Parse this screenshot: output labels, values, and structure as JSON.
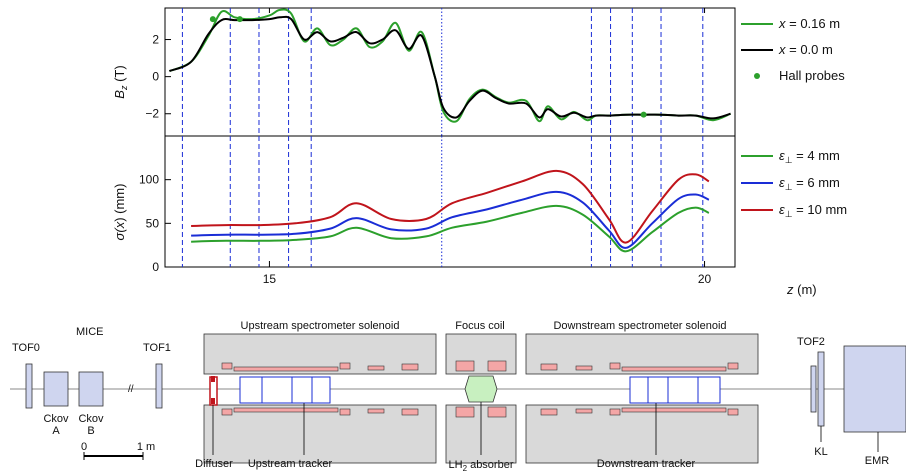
{
  "colors": {
    "green": "#2ca02c",
    "black": "#000000",
    "blue": "#1a2dd6",
    "red": "#c0141b",
    "guide": "#1a2dd6",
    "hall": "#2ca02c"
  },
  "chart_data": [
    {
      "type": "line",
      "ylabel": "B_z (T)",
      "ylabel_main": "B",
      "ylabel_sub": "z",
      "ylabel_unit": " (T)",
      "xlim": [
        13.8,
        20.35
      ],
      "ylim": [
        -3.2,
        3.7
      ],
      "yticks": [
        -2,
        0,
        2
      ],
      "series": [
        {
          "name": "x = 0.16 m",
          "legend_var": "x",
          "legend_rest": " = 0.16 m",
          "color": "#2ca02c",
          "x": [
            13.85,
            14.1,
            14.3,
            14.45,
            14.6,
            14.8,
            15.0,
            15.12,
            15.25,
            15.4,
            15.55,
            15.7,
            15.85,
            16.0,
            16.15,
            16.3,
            16.45,
            16.6,
            16.75,
            16.9,
            17.0,
            17.15,
            17.3,
            17.45,
            17.6,
            17.75,
            17.95,
            18.1,
            18.2,
            18.35,
            18.5,
            18.65,
            18.75,
            18.9,
            19.1,
            19.3,
            19.5,
            19.7,
            19.9,
            20.1,
            20.3
          ],
          "y": [
            0.3,
            0.8,
            2.2,
            3.5,
            3.2,
            3.1,
            3.3,
            3.6,
            3.4,
            1.9,
            2.6,
            1.7,
            2.0,
            2.6,
            1.6,
            1.9,
            2.9,
            1.4,
            2.4,
            0.0,
            -1.9,
            -2.4,
            -1.2,
            -0.7,
            -1.1,
            -1.4,
            -1.3,
            -2.4,
            -1.6,
            -2.3,
            -1.9,
            -2.35,
            -2.1,
            -2.1,
            -2.05,
            -2.05,
            -2.05,
            -2.1,
            -2.1,
            -2.35,
            -2.0
          ]
        },
        {
          "name": "x = 0.0 m",
          "legend_var": "x",
          "legend_rest": " = 0.0 m",
          "color": "#000000",
          "x": [
            13.85,
            14.1,
            14.3,
            14.45,
            14.6,
            14.8,
            15.0,
            15.12,
            15.25,
            15.4,
            15.55,
            15.7,
            15.85,
            16.0,
            16.15,
            16.3,
            16.45,
            16.6,
            16.75,
            16.9,
            17.0,
            17.15,
            17.3,
            17.45,
            17.6,
            17.75,
            17.95,
            18.1,
            18.2,
            18.35,
            18.5,
            18.65,
            18.75,
            18.9,
            19.1,
            19.3,
            19.5,
            19.7,
            19.9,
            20.1,
            20.3
          ],
          "y": [
            0.3,
            0.8,
            2.3,
            3.05,
            3.05,
            3.05,
            3.1,
            3.2,
            3.1,
            2.0,
            2.4,
            1.9,
            2.1,
            2.4,
            1.8,
            2.0,
            2.5,
            1.5,
            2.2,
            0.0,
            -1.7,
            -2.2,
            -1.3,
            -0.75,
            -1.15,
            -1.45,
            -1.45,
            -2.2,
            -1.75,
            -2.15,
            -1.95,
            -2.2,
            -2.1,
            -2.1,
            -2.05,
            -2.05,
            -2.05,
            -2.1,
            -2.1,
            -2.25,
            -2.0
          ]
        }
      ],
      "hall_probes": {
        "name": "Hall probes",
        "x": [
          14.35,
          14.66,
          19.3
        ],
        "y": [
          3.1,
          3.1,
          -2.05
        ]
      }
    },
    {
      "type": "line",
      "ylabel": "σ(x) (mm)",
      "ylabel_main": "σ(",
      "ylabel_var": "x",
      "ylabel_rest": ") (mm)",
      "xlabel": "z (m)",
      "xlabel_var": "z",
      "xlabel_rest": " (m)",
      "xlim": [
        13.8,
        20.35
      ],
      "ylim": [
        0,
        150
      ],
      "yticks": [
        0,
        50,
        100
      ],
      "xticks": [
        15,
        20
      ],
      "series": [
        {
          "name": "ε⊥ = 4 mm",
          "legend_var": "ε",
          "legend_sub": "⊥",
          "legend_rest": " = 4 mm",
          "color": "#2ca02c",
          "x": [
            14.1,
            14.5,
            14.9,
            15.3,
            15.7,
            16.0,
            16.4,
            16.8,
            17.1,
            17.5,
            17.9,
            18.3,
            18.6,
            18.9,
            19.1,
            19.4,
            19.7,
            19.9,
            20.05
          ],
          "y": [
            29,
            30,
            30,
            31,
            35,
            45,
            33,
            35,
            45,
            52,
            62,
            70,
            60,
            35,
            18,
            40,
            62,
            68,
            62
          ]
        },
        {
          "name": "ε⊥ = 6 mm",
          "legend_var": "ε",
          "legend_sub": "⊥",
          "legend_rest": " = 6 mm",
          "color": "#1a2dd6",
          "x": [
            14.1,
            14.5,
            14.9,
            15.3,
            15.7,
            16.0,
            16.4,
            16.8,
            17.1,
            17.5,
            17.9,
            18.3,
            18.6,
            18.9,
            19.1,
            19.4,
            19.7,
            19.9,
            20.05
          ],
          "y": [
            36,
            37,
            37,
            38,
            44,
            56,
            43,
            44,
            57,
            66,
            77,
            86,
            74,
            42,
            22,
            50,
            78,
            83,
            77
          ]
        },
        {
          "name": "ε⊥ = 10 mm",
          "legend_var": "ε",
          "legend_sub": "⊥",
          "legend_rest": " = 10 mm",
          "color": "#c0141b",
          "x": [
            14.1,
            14.5,
            14.9,
            15.3,
            15.7,
            16.0,
            16.4,
            16.8,
            17.1,
            17.5,
            17.9,
            18.3,
            18.6,
            18.9,
            19.1,
            19.4,
            19.7,
            19.9,
            20.05
          ],
          "y": [
            47,
            48,
            48,
            50,
            57,
            73,
            55,
            55,
            73,
            85,
            98,
            110,
            95,
            55,
            28,
            64,
            100,
            106,
            98
          ]
        }
      ]
    }
  ],
  "guide_lines_z": [
    14.1,
    14.66,
    14.92,
    15.22,
    15.4,
    16.0,
    16.68,
    17.15,
    17.5,
    17.8,
    18.1,
    18.3,
    18.4
  ],
  "dashed_lines_z": [
    14.0,
    14.55,
    14.88,
    15.22,
    15.48,
    18.7,
    18.92,
    19.17,
    19.5,
    19.98
  ],
  "dotted_line_z": 16.98,
  "layout_labels": {
    "mice": "MICE",
    "tof0": "TOF0",
    "tof1": "TOF1",
    "tof2": "TOF2",
    "ckov_a_1": "Ckov",
    "ckov_a_2": "A",
    "ckov_b_1": "Ckov",
    "ckov_b_2": "B",
    "scale_0": "0",
    "scale_1": "1 m",
    "upstream_solenoid": "Upstream spectrometer solenoid",
    "focus_coil": "Focus coil",
    "downstream_solenoid": "Downstream spectrometer solenoid",
    "diffuser": "Diffuser",
    "upstream_tracker": "Upstream tracker",
    "lh2_main": "LH",
    "lh2_sub": "2",
    "lh2_rest": " absorber",
    "downstream_tracker": "Downstream tracker",
    "kl": "KL",
    "emr": "EMR"
  }
}
